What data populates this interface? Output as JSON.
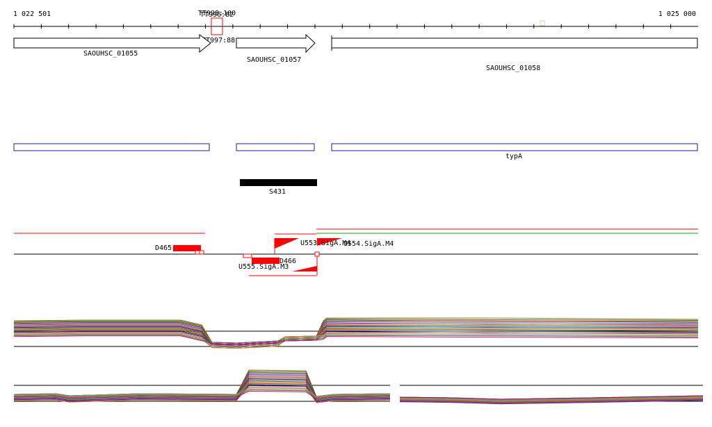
{
  "ruler": {
    "start_label": "1 022 501",
    "end_label": "1 025 000"
  },
  "features": {
    "tss_labels": [
      "TT998:100",
      "TT996:82",
      "TT997:88"
    ],
    "genes": [
      "SAOUHSC_01055",
      "SAOUHSC_01057",
      "SAOUHSC_01058"
    ],
    "gene_name": "typA",
    "srna": "S431"
  },
  "annotations": {
    "d465": "D465",
    "d466": "D466",
    "u553": "U553.SigA.M4",
    "u554": "U554.SigA.M4",
    "u555": "U555.SigA.M3"
  },
  "colors": {
    "arrow_stroke": "#000000",
    "gene_box": "#1a1aa0",
    "srna_fill": "#000000",
    "accent_red": "#ff0000",
    "strand_green": "#00b000",
    "baseline": "#000000"
  }
}
